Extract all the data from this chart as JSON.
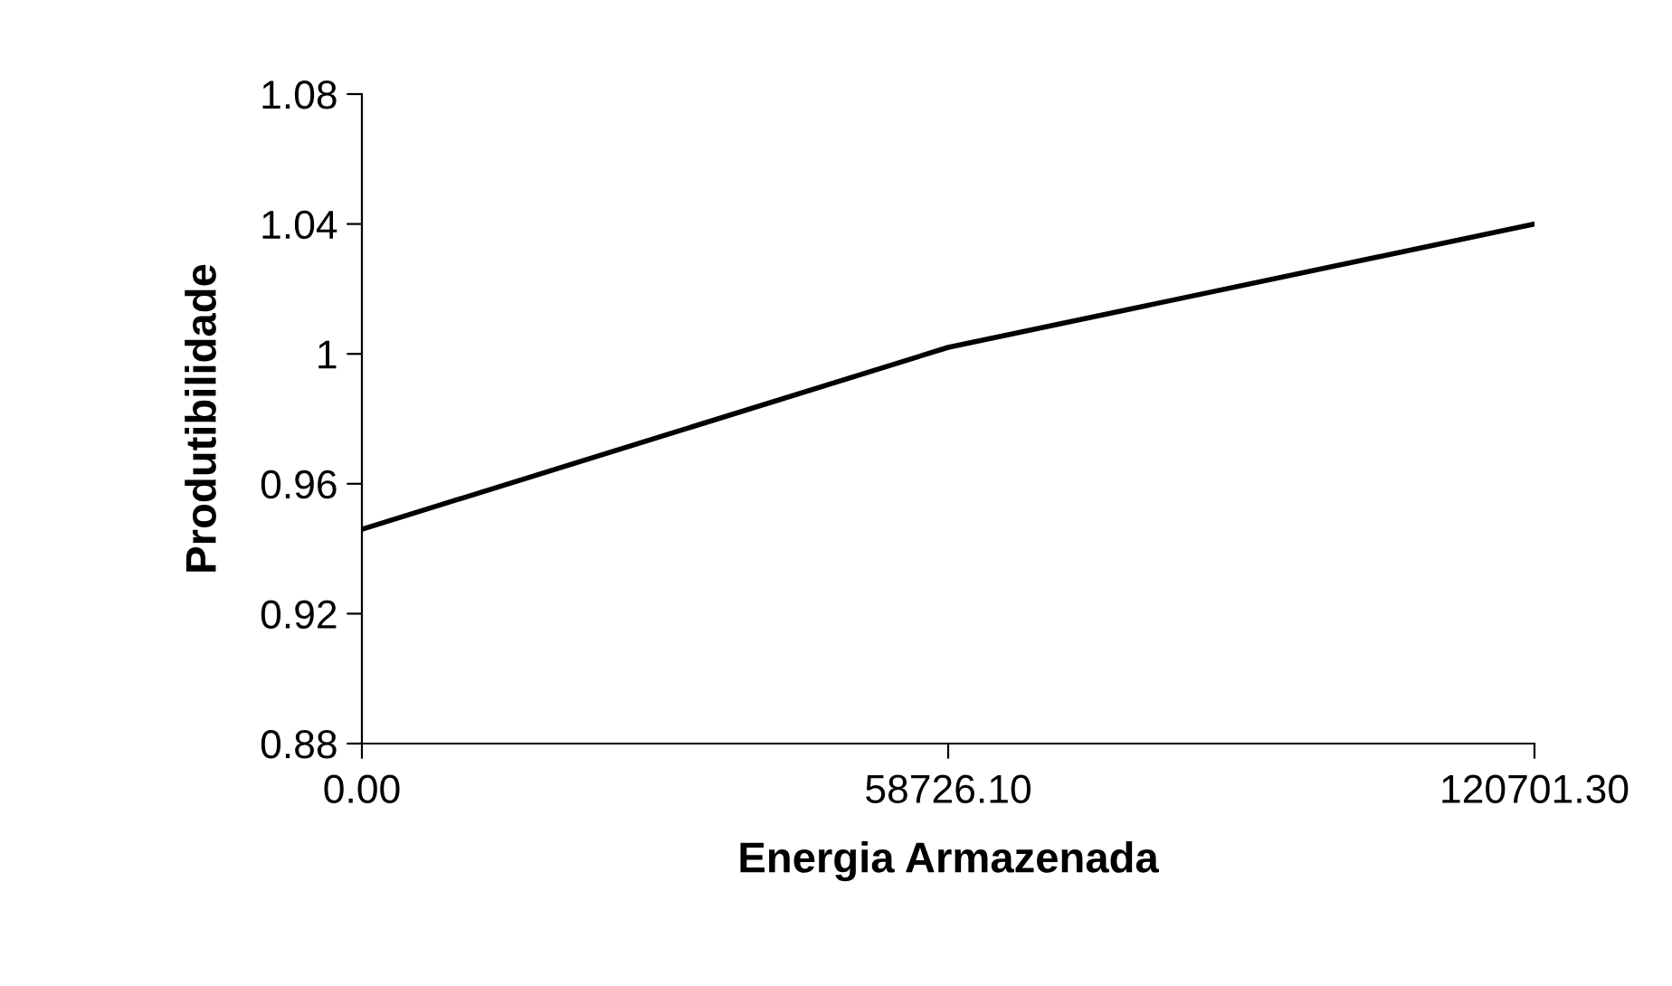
{
  "chart_data": {
    "type": "line",
    "xlabel": "Energia Armazenada",
    "ylabel": "Produtibilidade",
    "categories": [
      "0.00",
      "58726.10",
      "120701.30"
    ],
    "series": [
      {
        "color": "#000000",
        "values": [
          0.946,
          1.002,
          1.04
        ]
      }
    ],
    "ylim": [
      0.88,
      1.08
    ],
    "yticks": [
      0.88,
      0.92,
      0.96,
      1,
      1.04,
      1.08
    ],
    "grid": false,
    "legend": false,
    "marker": "none",
    "line_style": "solid"
  }
}
